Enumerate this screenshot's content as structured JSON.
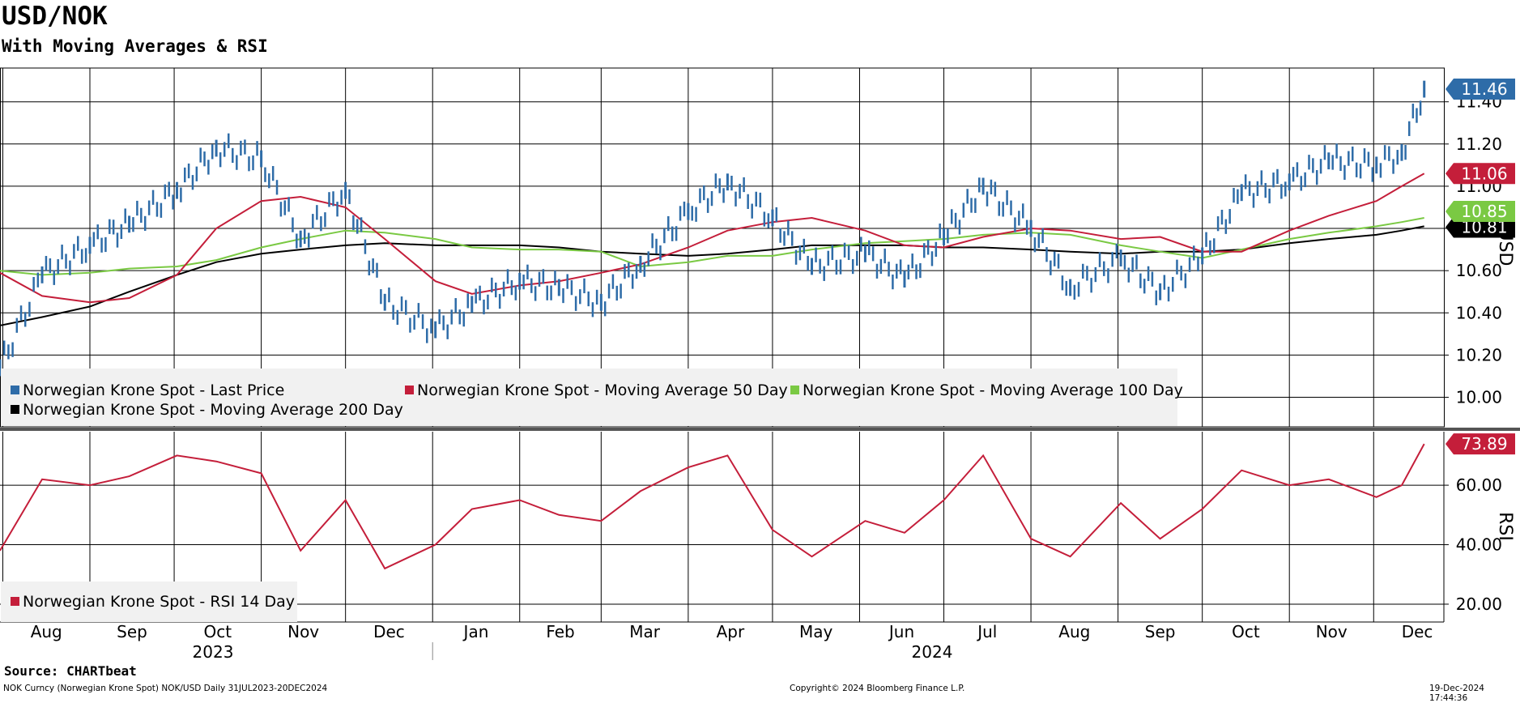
{
  "title": "USD/NOK",
  "subtitle": "With Moving Averages & RSI",
  "source": "Source: CHARTbeat",
  "footer": {
    "left": "NOK Curncy (Norwegian Krone Spot) NOK/USD  Daily 31JUL2023-20DEC2024",
    "center": "Copyright© 2024 Bloomberg Finance L.P.",
    "right": "19-Dec-2024 17:44:36"
  },
  "colors": {
    "price": "#2e6ca8",
    "ma50": "#c41e3a",
    "ma100": "#7ac943",
    "ma200": "#000000",
    "rsi": "#c41e3a"
  },
  "chart_data": [
    {
      "type": "line",
      "panel": "price",
      "ylabel": "USD",
      "ylim": [
        9.86,
        11.56
      ],
      "yticks": [
        "10.00",
        "10.20",
        "10.40",
        "10.60",
        "10.80",
        "11.00",
        "11.20",
        "11.40"
      ],
      "grid": true,
      "legend_position": "bottom-left",
      "x": [
        "2023-07-31",
        "2023-08-15",
        "2023-09-01",
        "2023-09-15",
        "2023-10-02",
        "2023-10-16",
        "2023-11-01",
        "2023-11-15",
        "2023-12-01",
        "2023-12-15",
        "2024-01-02",
        "2024-01-15",
        "2024-02-01",
        "2024-02-15",
        "2024-03-01",
        "2024-03-15",
        "2024-04-01",
        "2024-04-15",
        "2024-05-01",
        "2024-05-15",
        "2024-06-03",
        "2024-06-17",
        "2024-07-01",
        "2024-07-15",
        "2024-08-01",
        "2024-08-15",
        "2024-09-02",
        "2024-09-16",
        "2024-10-01",
        "2024-10-15",
        "2024-11-01",
        "2024-11-15",
        "2024-12-02",
        "2024-12-11",
        "2024-12-19"
      ],
      "series": [
        {
          "name": "Norwegian Krone Spot - Last Price",
          "last_label": "11.46",
          "values": [
            10.14,
            10.58,
            10.72,
            10.82,
            10.98,
            11.18,
            11.13,
            10.75,
            10.98,
            10.45,
            10.32,
            10.44,
            10.55,
            10.52,
            10.45,
            10.63,
            10.88,
            11.02,
            10.85,
            10.62,
            10.68,
            10.56,
            10.76,
            11.0,
            10.8,
            10.52,
            10.66,
            10.5,
            10.67,
            10.97,
            11.02,
            11.12,
            11.1,
            11.16,
            11.46
          ]
        },
        {
          "name": "Norwegian Krone Spot - Moving Average 50 Day",
          "last_label": "11.06",
          "values": [
            10.59,
            10.48,
            10.45,
            10.47,
            10.58,
            10.8,
            10.93,
            10.95,
            10.9,
            10.75,
            10.55,
            10.49,
            10.53,
            10.55,
            10.59,
            10.63,
            10.71,
            10.79,
            10.83,
            10.85,
            10.79,
            10.72,
            10.71,
            10.76,
            10.8,
            10.79,
            10.75,
            10.76,
            10.69,
            10.69,
            10.79,
            10.86,
            10.93,
            11.0,
            11.06
          ]
        },
        {
          "name": "Norwegian Krone Spot - Moving Average 100 Day",
          "last_label": "10.85",
          "values": [
            10.6,
            10.58,
            10.59,
            10.61,
            10.62,
            10.65,
            10.71,
            10.75,
            10.79,
            10.78,
            10.75,
            10.71,
            10.7,
            10.7,
            10.69,
            10.62,
            10.64,
            10.67,
            10.67,
            10.7,
            10.73,
            10.74,
            10.75,
            10.77,
            10.78,
            10.77,
            10.72,
            10.69,
            10.66,
            10.7,
            10.75,
            10.78,
            10.81,
            10.83,
            10.85
          ]
        },
        {
          "name": "Norwegian Krone Spot - Moving Average 200 Day",
          "last_label": "10.81",
          "values": [
            10.34,
            10.38,
            10.43,
            10.5,
            10.58,
            10.64,
            10.68,
            10.7,
            10.72,
            10.73,
            10.72,
            10.72,
            10.72,
            10.71,
            10.69,
            10.68,
            10.67,
            10.68,
            10.7,
            10.72,
            10.72,
            10.72,
            10.71,
            10.71,
            10.7,
            10.69,
            10.68,
            10.69,
            10.69,
            10.7,
            10.73,
            10.75,
            10.77,
            10.79,
            10.81
          ]
        }
      ]
    },
    {
      "type": "line",
      "panel": "rsi",
      "ylabel": "RSI",
      "ylim": [
        14,
        78
      ],
      "yticks": [
        "20.00",
        "40.00",
        "60.00"
      ],
      "grid": true,
      "legend_position": "bottom-left",
      "x": [
        "2023-07-31",
        "2023-08-15",
        "2023-09-01",
        "2023-09-15",
        "2023-10-02",
        "2023-10-16",
        "2023-11-01",
        "2023-11-15",
        "2023-12-01",
        "2023-12-15",
        "2024-01-02",
        "2024-01-15",
        "2024-02-01",
        "2024-02-15",
        "2024-03-01",
        "2024-03-15",
        "2024-04-01",
        "2024-04-15",
        "2024-05-01",
        "2024-05-15",
        "2024-06-03",
        "2024-06-17",
        "2024-07-01",
        "2024-07-15",
        "2024-08-01",
        "2024-08-15",
        "2024-09-02",
        "2024-09-16",
        "2024-10-01",
        "2024-10-15",
        "2024-11-01",
        "2024-11-15",
        "2024-12-02",
        "2024-12-11",
        "2024-12-19"
      ],
      "series": [
        {
          "name": "Norwegian Krone Spot - RSI 14 Day",
          "last_label": "73.89",
          "values": [
            38,
            62,
            60,
            63,
            70,
            68,
            64,
            38,
            55,
            32,
            40,
            52,
            55,
            50,
            48,
            58,
            66,
            70,
            45,
            36,
            48,
            44,
            55,
            70,
            42,
            36,
            54,
            42,
            52,
            65,
            60,
            62,
            56,
            60,
            73.89
          ]
        }
      ]
    }
  ],
  "x_axis": {
    "months": [
      "Aug",
      "Sep",
      "Oct",
      "Nov",
      "Dec",
      "Jan",
      "Feb",
      "Mar",
      "Apr",
      "May",
      "Jun",
      "Jul",
      "Aug",
      "Sep",
      "Oct",
      "Nov",
      "Dec"
    ],
    "years": [
      "2023",
      "2024"
    ]
  }
}
